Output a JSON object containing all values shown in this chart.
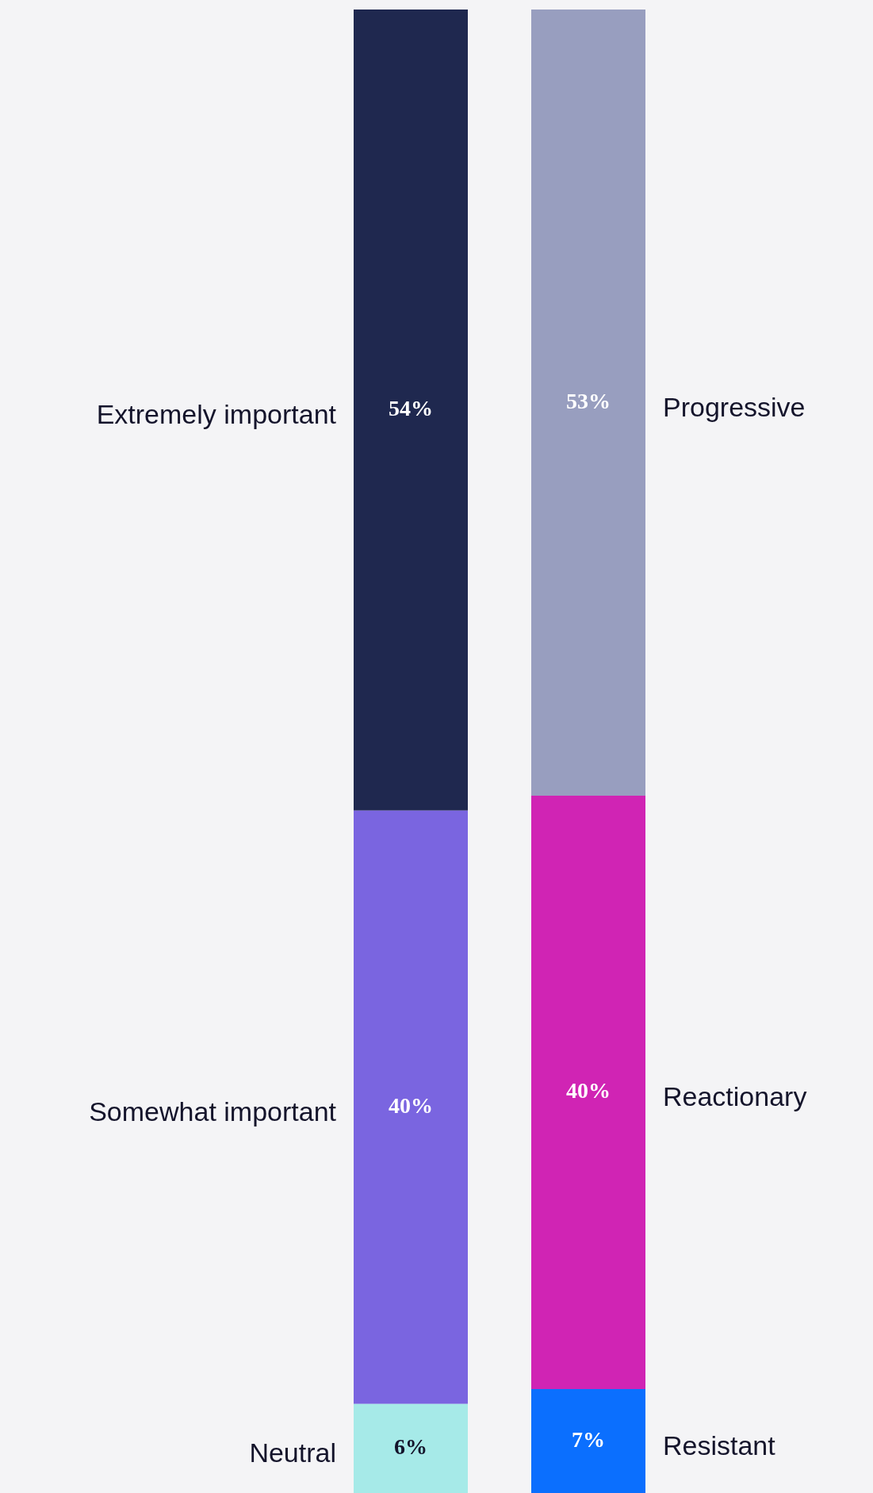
{
  "chart_data": {
    "type": "bar",
    "stacked": true,
    "categories": [
      null,
      null
    ],
    "legend": false,
    "series": [
      {
        "name": "Neutral",
        "color": "#a6eae8",
        "values": [
          6,
          null
        ],
        "value_labels": [
          "6%",
          null
        ]
      },
      {
        "name": "Somewhat important",
        "color": "#7a65e0",
        "values": [
          40,
          null
        ],
        "value_labels": [
          "40%",
          null
        ]
      },
      {
        "name": "Extremely important",
        "color": "#1f284f",
        "values": [
          54,
          null
        ],
        "value_labels": [
          "54%",
          null
        ]
      },
      {
        "name": "Resistant",
        "color": "#0b6ffe",
        "values": [
          null,
          7
        ],
        "value_labels": [
          null,
          "7%"
        ]
      },
      {
        "name": "Reactionary",
        "color": "#d024b4",
        "values": [
          null,
          40
        ],
        "value_labels": [
          null,
          "40%"
        ]
      },
      {
        "name": "Progressive",
        "color": "#989ebf",
        "values": [
          null,
          53
        ],
        "value_labels": [
          null,
          "53%"
        ]
      }
    ]
  }
}
